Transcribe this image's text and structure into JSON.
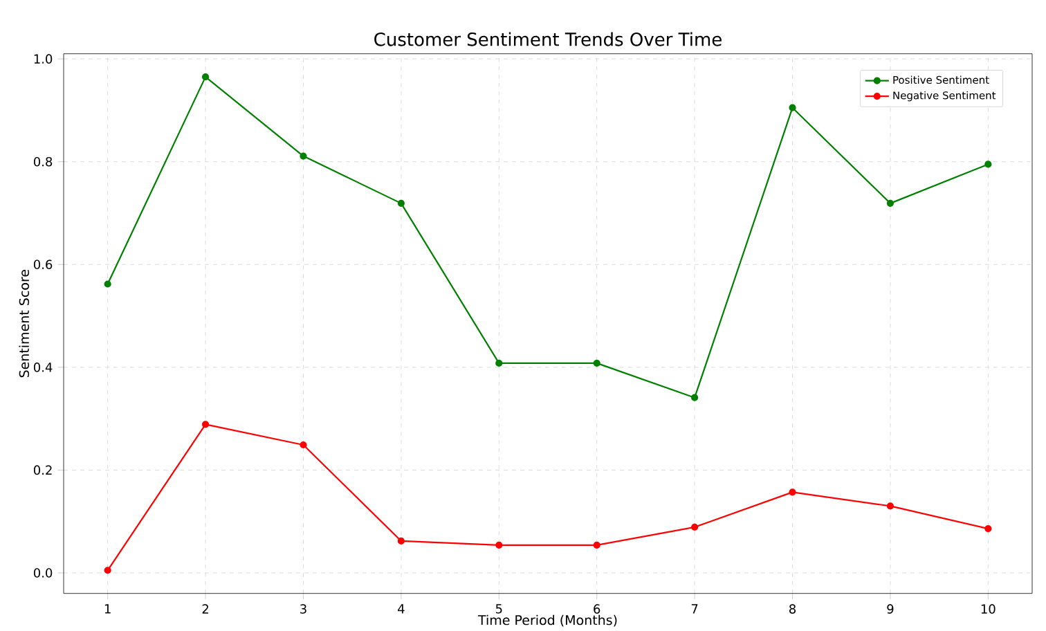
{
  "chart_data": {
    "type": "line",
    "title": "Customer Sentiment Trends Over Time",
    "xlabel": "Time Period (Months)",
    "ylabel": "Sentiment Score",
    "x": [
      1,
      2,
      3,
      4,
      5,
      6,
      7,
      8,
      9,
      10
    ],
    "series": [
      {
        "name": "Positive Sentiment",
        "color": "#008000",
        "values": [
          0.562,
          0.965,
          0.811,
          0.719,
          0.408,
          0.408,
          0.341,
          0.905,
          0.719,
          0.795
        ]
      },
      {
        "name": "Negative Sentiment",
        "color": "#ff0000",
        "values": [
          0.005,
          0.289,
          0.249,
          0.062,
          0.054,
          0.054,
          0.089,
          0.157,
          0.13,
          0.086
        ]
      }
    ],
    "xlim": [
      0.55,
      10.45
    ],
    "xticks": [
      1,
      2,
      3,
      4,
      5,
      6,
      7,
      8,
      9,
      10
    ],
    "ylim": [
      -0.04,
      1.01
    ],
    "yticks": [
      {
        "value": 0,
        "label": "0.0"
      },
      {
        "value": 0.2,
        "label": "0.2"
      },
      {
        "value": 0.4,
        "label": "0.4"
      },
      {
        "value": 0.6,
        "label": "0.6"
      },
      {
        "value": 0.8,
        "label": "0.8"
      },
      {
        "value": 1,
        "label": "1.0"
      }
    ],
    "grid": true,
    "legend": "top right",
    "marker": "circle",
    "line_style": "solid"
  }
}
